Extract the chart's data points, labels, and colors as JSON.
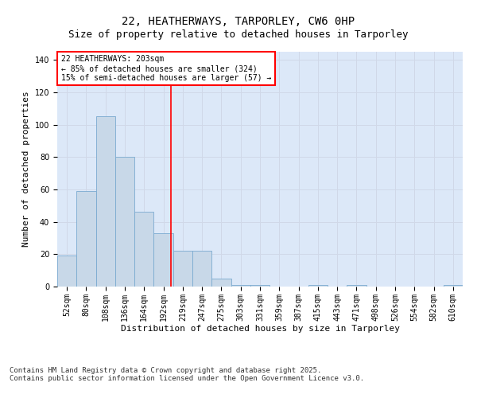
{
  "title_line1": "22, HEATHERWAYS, TARPORLEY, CW6 0HP",
  "title_line2": "Size of property relative to detached houses in Tarporley",
  "xlabel": "Distribution of detached houses by size in Tarporley",
  "ylabel": "Number of detached properties",
  "categories": [
    "52sqm",
    "80sqm",
    "108sqm",
    "136sqm",
    "164sqm",
    "192sqm",
    "219sqm",
    "247sqm",
    "275sqm",
    "303sqm",
    "331sqm",
    "359sqm",
    "387sqm",
    "415sqm",
    "443sqm",
    "471sqm",
    "498sqm",
    "526sqm",
    "554sqm",
    "582sqm",
    "610sqm"
  ],
  "values": [
    19,
    59,
    105,
    80,
    46,
    33,
    22,
    22,
    5,
    1,
    1,
    0,
    0,
    1,
    0,
    1,
    0,
    0,
    0,
    0,
    1
  ],
  "bar_color": "#c8d8e8",
  "bar_edge_color": "#7aaad0",
  "grid_color": "#d0d8e8",
  "background_color": "#dce8f8",
  "vline_color": "red",
  "annotation_text": "22 HEATHERWAYS: 203sqm\n← 85% of detached houses are smaller (324)\n15% of semi-detached houses are larger (57) →",
  "annotation_box_color": "white",
  "annotation_box_edge": "red",
  "ylim": [
    0,
    145
  ],
  "yticks": [
    0,
    20,
    40,
    60,
    80,
    100,
    120,
    140
  ],
  "footer_text": "Contains HM Land Registry data © Crown copyright and database right 2025.\nContains public sector information licensed under the Open Government Licence v3.0.",
  "title_fontsize": 10,
  "subtitle_fontsize": 9,
  "axis_label_fontsize": 8,
  "tick_fontsize": 7,
  "annotation_fontsize": 7,
  "footer_fontsize": 6.5
}
